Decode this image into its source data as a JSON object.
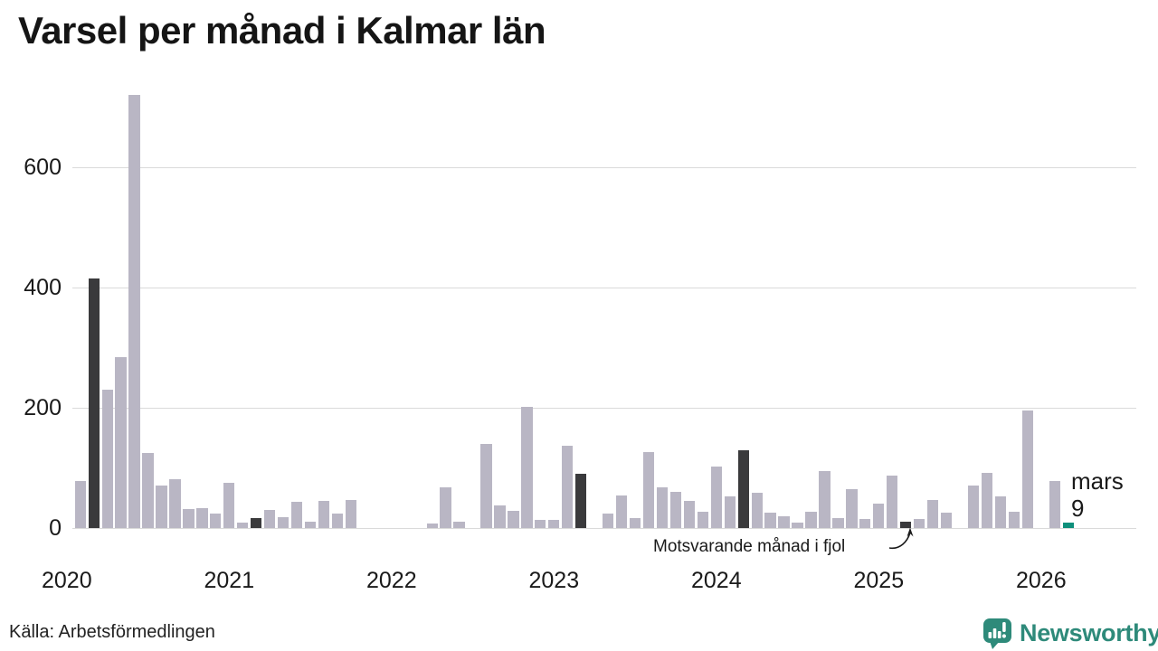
{
  "title": "Varsel per månad i Kalmar län",
  "source": "Källa: Arbetsförmedlingen",
  "annotation": {
    "compare_label": "Motsvarande månad i fjol",
    "current_month_label": "mars",
    "current_value_label": "9"
  },
  "logo": {
    "name": "Newsworthy",
    "color": "#2e8a7a"
  },
  "chart_data": {
    "type": "bar",
    "title": "Varsel per månad i Kalmar län",
    "xlabel": "",
    "ylabel": "",
    "ylim": [
      0,
      720
    ],
    "grid": "horizontal",
    "y_ticks": [
      0,
      200,
      400,
      600
    ],
    "x_ticks": [
      "2020",
      "2021",
      "2022",
      "2023",
      "2024",
      "2025",
      "2026"
    ],
    "months": [
      "2020-01",
      "2020-02",
      "2020-03",
      "2020-04",
      "2020-05",
      "2020-06",
      "2020-07",
      "2020-08",
      "2020-09",
      "2020-10",
      "2020-11",
      "2020-12",
      "2021-01",
      "2021-02",
      "2021-03",
      "2021-04",
      "2021-05",
      "2021-06",
      "2021-07",
      "2021-08",
      "2021-09",
      "2021-10",
      "2021-11",
      "2021-12",
      "2022-01",
      "2022-02",
      "2022-03",
      "2022-04",
      "2022-05",
      "2022-06",
      "2022-07",
      "2022-08",
      "2022-09",
      "2022-10",
      "2022-11",
      "2022-12",
      "2023-01",
      "2023-02",
      "2023-03",
      "2023-04",
      "2023-05",
      "2023-06",
      "2023-07",
      "2023-08",
      "2023-09",
      "2023-10",
      "2023-11",
      "2023-12",
      "2024-01",
      "2024-02",
      "2024-03",
      "2024-04",
      "2024-05",
      "2024-06",
      "2024-07",
      "2024-08",
      "2024-09",
      "2024-10",
      "2024-11",
      "2024-12",
      "2025-01",
      "2025-02",
      "2025-03",
      "2025-04",
      "2025-05",
      "2025-06",
      "2025-07",
      "2025-08",
      "2025-09",
      "2025-10",
      "2025-11",
      "2025-12",
      "2026-01",
      "2026-02",
      "2026-03"
    ],
    "values": [
      0,
      78,
      415,
      230,
      285,
      720,
      125,
      70,
      82,
      31,
      33,
      24,
      76,
      9,
      16,
      30,
      18,
      44,
      10,
      45,
      24,
      46,
      0,
      0,
      0,
      0,
      0,
      7,
      67,
      11,
      0,
      140,
      37,
      28,
      202,
      14,
      14,
      137,
      90,
      0,
      24,
      54,
      17,
      127,
      68,
      60,
      45,
      27,
      103,
      53,
      129,
      58,
      25,
      19,
      9,
      27,
      95,
      16,
      64,
      15,
      40,
      88,
      10,
      15,
      46,
      25,
      0,
      70,
      92,
      52,
      27,
      195,
      0,
      78,
      9
    ],
    "dark_indices": [
      2,
      14,
      26,
      38,
      50,
      62
    ],
    "current_index": 74,
    "legend": {
      "dark_meaning": "Motsvarande månad i fjol (mars varje år)",
      "current_meaning": "mars 2026 = 9"
    },
    "colors": {
      "regular": "#b9b6c4",
      "compare": "#3a3a3c",
      "current": "#0e8f7b",
      "gridline": "#dadada",
      "text": "#1a1a1a"
    }
  }
}
